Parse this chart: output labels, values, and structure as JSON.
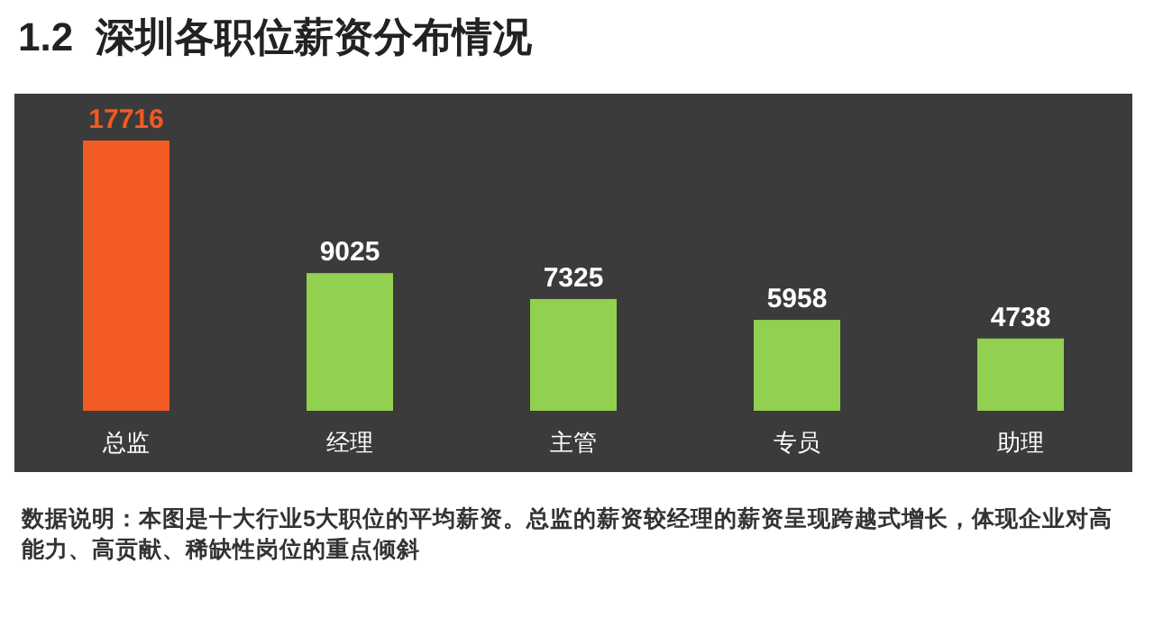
{
  "chart_data": {
    "type": "bar",
    "title": "1.2  深圳各职位薪资分布情况",
    "categories": [
      "总监",
      "经理",
      "主管",
      "专员",
      "助理"
    ],
    "values": [
      17716,
      9025,
      7325,
      5958,
      4738
    ],
    "colors": [
      "#f15a22",
      "#92d050",
      "#92d050",
      "#92d050",
      "#92d050"
    ],
    "data_labels": true,
    "annotations": [
      "数据说明：本图是十大行业5大职位的平均薪资。总监的薪资较经理的薪资呈现跨越式增长，体现企业对高能力、高贡献、稀缺性岗位的重点倾斜"
    ]
  }
}
